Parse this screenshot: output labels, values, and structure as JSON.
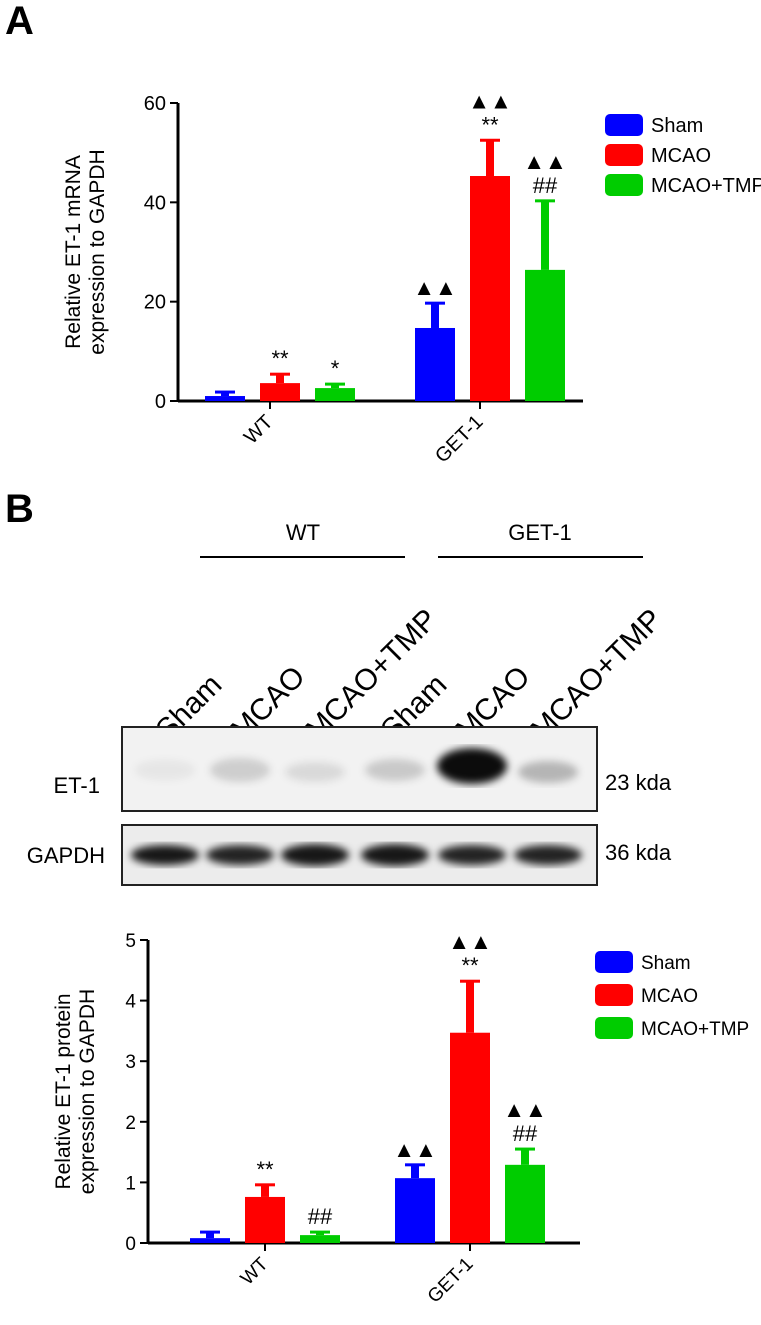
{
  "panels": [
    "A",
    "B"
  ],
  "chart_data": [
    {
      "type": "bar",
      "ylabel": [
        "Relative ET-1 mRNA",
        "expression to GAPDH"
      ],
      "categories": [
        "WT",
        "GET-1"
      ],
      "series": [
        {
          "name": "Sham",
          "color": "#0000ff",
          "values": [
            1.0,
            14.7
          ],
          "errors": [
            0.8,
            5.0
          ],
          "annotations": [
            [],
            [
              "▲▲"
            ]
          ]
        },
        {
          "name": "MCAO",
          "color": "#ff0000",
          "values": [
            3.6,
            45.3
          ],
          "errors": [
            1.8,
            7.2
          ],
          "annotations": [
            [
              "**"
            ],
            [
              "▲▲",
              "**"
            ]
          ]
        },
        {
          "name": "MCAO+TMP",
          "color": "#00cc00",
          "values": [
            2.6,
            26.4
          ],
          "errors": [
            0.8,
            13.9
          ],
          "annotations": [
            [
              "*"
            ],
            [
              "▲▲",
              "##"
            ]
          ]
        }
      ],
      "ylim": [
        0,
        60
      ],
      "yticks": [
        0,
        20,
        40,
        60
      ],
      "legend": "right"
    },
    {
      "type": "bar",
      "ylabel": [
        "Relative ET-1 protein",
        "expression to GAPDH"
      ],
      "categories": [
        "WT",
        "GET-1"
      ],
      "series": [
        {
          "name": "Sham",
          "color": "#0000ff",
          "values": [
            0.08,
            1.07
          ],
          "errors": [
            0.1,
            0.22
          ],
          "annotations": [
            [],
            [
              "▲▲"
            ]
          ]
        },
        {
          "name": "MCAO",
          "color": "#ff0000",
          "values": [
            0.76,
            3.47
          ],
          "errors": [
            0.2,
            0.85
          ],
          "annotations": [
            [
              "**"
            ],
            [
              "▲▲",
              "**"
            ]
          ]
        },
        {
          "name": "MCAO+TMP",
          "color": "#00cc00",
          "values": [
            0.13,
            1.29
          ],
          "errors": [
            0.05,
            0.26
          ],
          "annotations": [
            [
              "##"
            ],
            [
              "▲▲",
              "##"
            ]
          ]
        }
      ],
      "ylim": [
        0,
        5
      ],
      "yticks": [
        0,
        1,
        2,
        3,
        4,
        5
      ],
      "legend": "right"
    }
  ],
  "blot": {
    "groups": [
      "WT",
      "GET-1"
    ],
    "lanes": [
      "Sham",
      "MCAO",
      "MCAO+TMP",
      "Sham",
      "MCAO",
      "MCAO+TMP"
    ],
    "rows": [
      {
        "label": "ET-1",
        "size": "23 kda"
      },
      {
        "label": "GAPDH",
        "size": "36 kda"
      }
    ]
  }
}
